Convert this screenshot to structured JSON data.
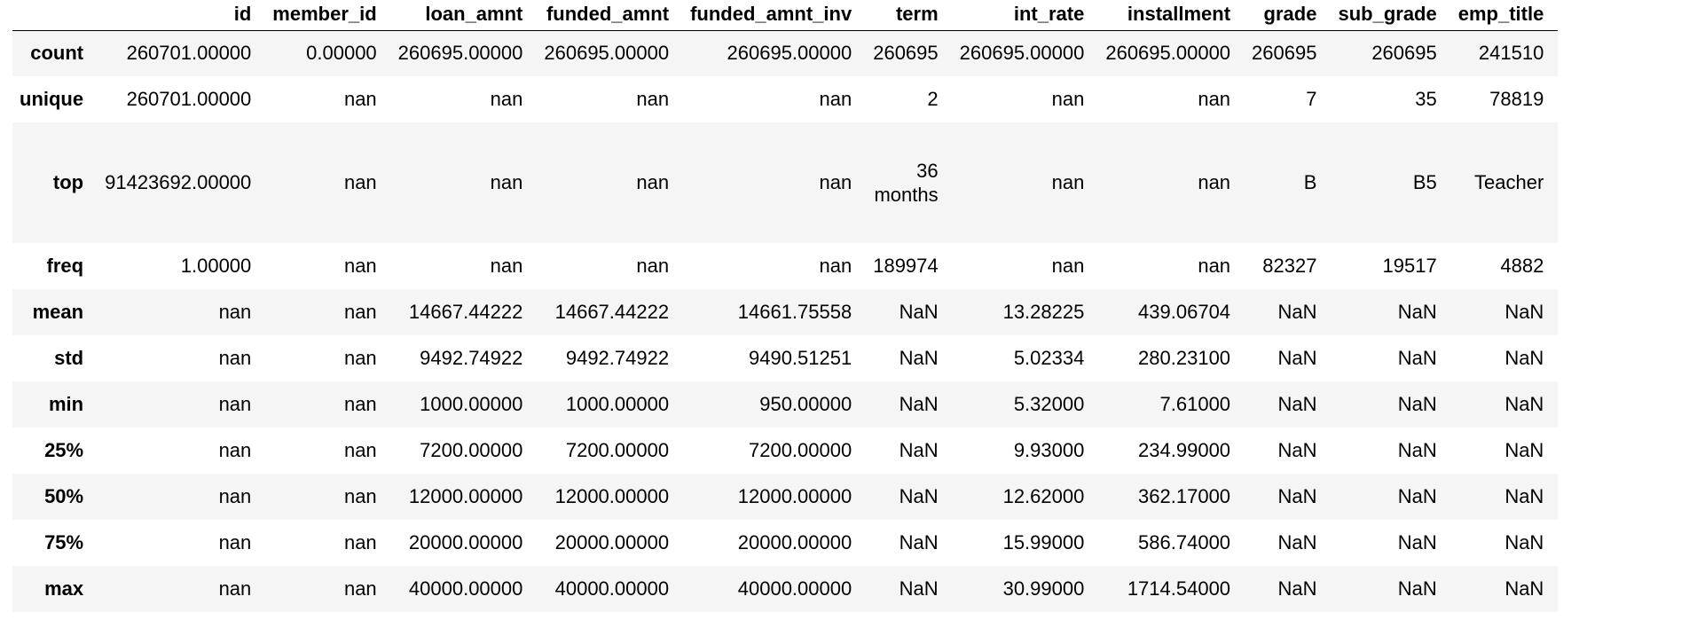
{
  "table": {
    "columns": [
      "",
      "id",
      "member_id",
      "loan_amnt",
      "funded_amnt",
      "funded_amnt_inv",
      "term",
      "int_rate",
      "installment",
      "grade",
      "sub_grade",
      "emp_title"
    ],
    "rows": [
      {
        "label": "count",
        "cells": [
          "260701.00000",
          "0.00000",
          "260695.00000",
          "260695.00000",
          "260695.00000",
          "260695",
          "260695.00000",
          "260695.00000",
          "260695",
          "260695",
          "241510"
        ]
      },
      {
        "label": "unique",
        "cells": [
          "260701.00000",
          "nan",
          "nan",
          "nan",
          "nan",
          "2",
          "nan",
          "nan",
          "7",
          "35",
          "78819"
        ]
      },
      {
        "label": "top",
        "cells": [
          "91423692.00000",
          "nan",
          "nan",
          "nan",
          "nan",
          "36 months",
          "nan",
          "nan",
          "B",
          "B5",
          "Teacher"
        ]
      },
      {
        "label": "freq",
        "cells": [
          "1.00000",
          "nan",
          "nan",
          "nan",
          "nan",
          "189974",
          "nan",
          "nan",
          "82327",
          "19517",
          "4882"
        ]
      },
      {
        "label": "mean",
        "cells": [
          "nan",
          "nan",
          "14667.44222",
          "14667.44222",
          "14661.75558",
          "NaN",
          "13.28225",
          "439.06704",
          "NaN",
          "NaN",
          "NaN"
        ]
      },
      {
        "label": "std",
        "cells": [
          "nan",
          "nan",
          "9492.74922",
          "9492.74922",
          "9490.51251",
          "NaN",
          "5.02334",
          "280.23100",
          "NaN",
          "NaN",
          "NaN"
        ]
      },
      {
        "label": "min",
        "cells": [
          "nan",
          "nan",
          "1000.00000",
          "1000.00000",
          "950.00000",
          "NaN",
          "5.32000",
          "7.61000",
          "NaN",
          "NaN",
          "NaN"
        ]
      },
      {
        "label": "25%",
        "cells": [
          "nan",
          "nan",
          "7200.00000",
          "7200.00000",
          "7200.00000",
          "NaN",
          "9.93000",
          "234.99000",
          "NaN",
          "NaN",
          "NaN"
        ]
      },
      {
        "label": "50%",
        "cells": [
          "nan",
          "nan",
          "12000.00000",
          "12000.00000",
          "12000.00000",
          "NaN",
          "12.62000",
          "362.17000",
          "NaN",
          "NaN",
          "NaN"
        ]
      },
      {
        "label": "75%",
        "cells": [
          "nan",
          "nan",
          "20000.00000",
          "20000.00000",
          "20000.00000",
          "NaN",
          "15.99000",
          "586.74000",
          "NaN",
          "NaN",
          "NaN"
        ]
      },
      {
        "label": "max",
        "cells": [
          "nan",
          "nan",
          "40000.00000",
          "40000.00000",
          "40000.00000",
          "NaN",
          "30.99000",
          "1714.54000",
          "NaN",
          "NaN",
          "NaN"
        ]
      }
    ]
  },
  "colors": {
    "stripe": "#f5f5f5",
    "background": "#ffffff",
    "text": "#000000",
    "header_rule": "#000000"
  }
}
